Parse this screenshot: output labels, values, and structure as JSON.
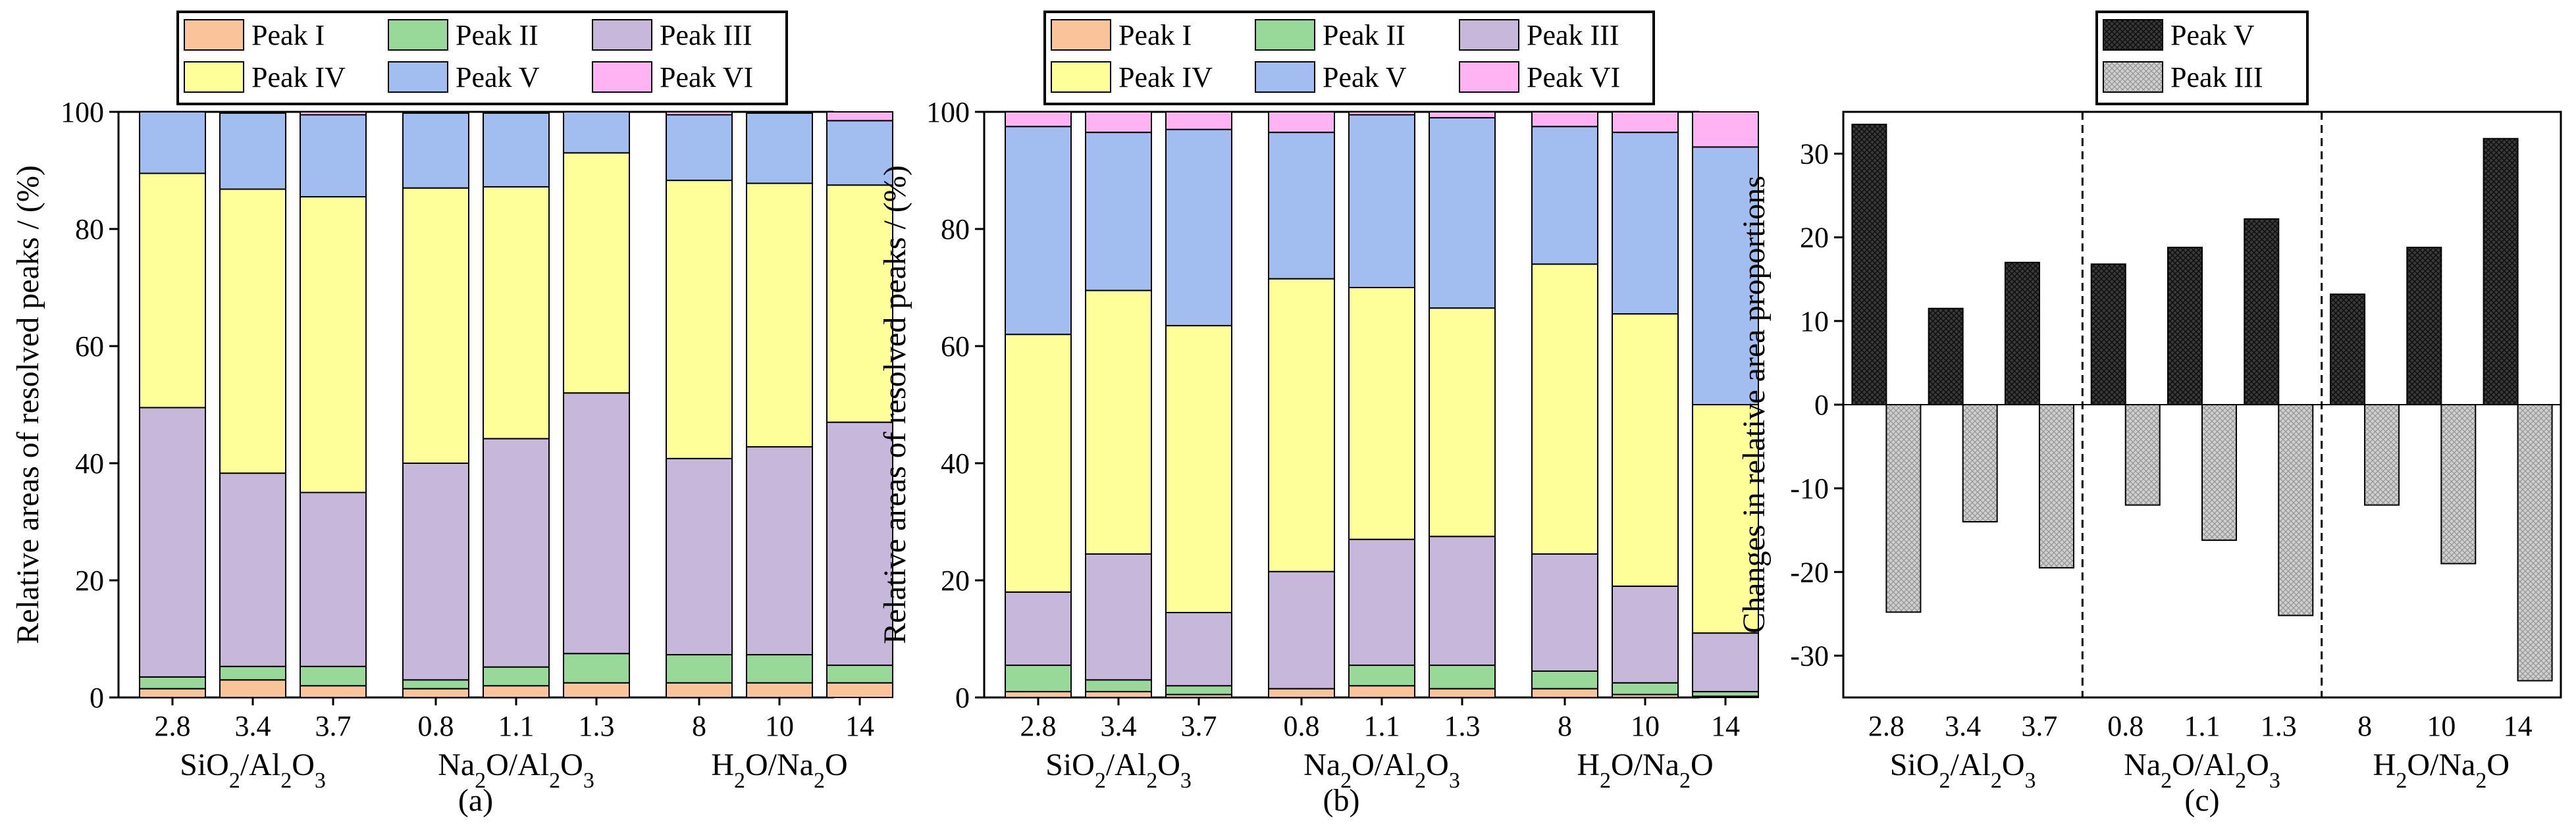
{
  "chart_data": [
    {
      "panel": "(a)",
      "type": "stacked-bar",
      "ylabel": "Relative areas of resolved peaks / (%)",
      "ylim": [
        0,
        100
      ],
      "yticks": [
        0,
        20,
        40,
        60,
        80,
        100
      ],
      "groups": [
        {
          "label": "SiO2/Al2O3",
          "label_main": "SiO",
          "label_parts": [
            {
              "t": "SiO"
            },
            {
              "t": "2",
              "sub": true
            },
            {
              "t": "/Al"
            },
            {
              "t": "2",
              "sub": true
            },
            {
              "t": "O"
            },
            {
              "t": "3",
              "sub": true
            }
          ],
          "categories": [
            "2.8",
            "3.4",
            "3.7"
          ]
        },
        {
          "label": "Na2O/Al2O3",
          "label_parts": [
            {
              "t": "Na"
            },
            {
              "t": "2",
              "sub": true
            },
            {
              "t": "O/Al"
            },
            {
              "t": "2",
              "sub": true
            },
            {
              "t": "O"
            },
            {
              "t": "3",
              "sub": true
            }
          ],
          "categories": [
            "0.8",
            "1.1",
            "1.3"
          ]
        },
        {
          "label": "H2O/Na2O",
          "label_parts": [
            {
              "t": "H"
            },
            {
              "t": "2",
              "sub": true
            },
            {
              "t": "O/Na"
            },
            {
              "t": "2",
              "sub": true
            },
            {
              "t": "O"
            }
          ],
          "categories": [
            "8",
            "10",
            "14"
          ]
        }
      ],
      "series": [
        {
          "name": "Peak I",
          "color": "#F9C499",
          "values": [
            1.5,
            3.0,
            2.0,
            1.5,
            2.0,
            2.5,
            2.5,
            2.5,
            2.5
          ]
        },
        {
          "name": "Peak II",
          "color": "#98D99A",
          "values": [
            2.0,
            2.3,
            3.3,
            1.5,
            3.2,
            5.0,
            4.8,
            4.8,
            3.0
          ]
        },
        {
          "name": "Peak III",
          "color": "#C7B7DA",
          "values": [
            46.0,
            33.0,
            29.7,
            37.0,
            39.0,
            44.5,
            33.5,
            35.5,
            41.5
          ]
        },
        {
          "name": "Peak IV",
          "color": "#FFFF99",
          "values": [
            40.0,
            48.5,
            50.5,
            47.0,
            43.0,
            41.0,
            47.5,
            45.0,
            40.5
          ]
        },
        {
          "name": "Peak V",
          "color": "#A2BEF0",
          "values": [
            10.5,
            13.0,
            14.0,
            12.8,
            12.6,
            7.0,
            11.2,
            12.0,
            11.0
          ]
        },
        {
          "name": "Peak VI",
          "color": "#FFB3F3",
          "values": [
            0.0,
            0.2,
            0.5,
            0.2,
            0.2,
            0.0,
            0.5,
            0.2,
            1.5
          ]
        }
      ],
      "legend": [
        {
          "name": "Peak I",
          "color": "#F9C499"
        },
        {
          "name": "Peak II",
          "color": "#98D99A"
        },
        {
          "name": "Peak III",
          "color": "#C7B7DA"
        },
        {
          "name": "Peak IV",
          "color": "#FFFF99"
        },
        {
          "name": "Peak V",
          "color": "#A2BEF0"
        },
        {
          "name": "Peak VI",
          "color": "#FFB3F3"
        }
      ],
      "legend_placement": "top"
    },
    {
      "panel": "(b)",
      "type": "stacked-bar",
      "ylabel": "Relative areas of resolved peaks / (%)",
      "ylim": [
        0,
        100
      ],
      "yticks": [
        0,
        20,
        40,
        60,
        80,
        100
      ],
      "groups": [
        {
          "label": "SiO2/Al2O3",
          "label_parts": [
            {
              "t": "SiO"
            },
            {
              "t": "2",
              "sub": true
            },
            {
              "t": "/Al"
            },
            {
              "t": "2",
              "sub": true
            },
            {
              "t": "O"
            },
            {
              "t": "3",
              "sub": true
            }
          ],
          "categories": [
            "2.8",
            "3.4",
            "3.7"
          ]
        },
        {
          "label": "Na2O/Al2O3",
          "label_parts": [
            {
              "t": "Na"
            },
            {
              "t": "2",
              "sub": true
            },
            {
              "t": "O/Al"
            },
            {
              "t": "2",
              "sub": true
            },
            {
              "t": "O"
            },
            {
              "t": "3",
              "sub": true
            }
          ],
          "categories": [
            "0.8",
            "1.1",
            "1.3"
          ]
        },
        {
          "label": "H2O/Na2O",
          "label_parts": [
            {
              "t": "H"
            },
            {
              "t": "2",
              "sub": true
            },
            {
              "t": "O/Na"
            },
            {
              "t": "2",
              "sub": true
            },
            {
              "t": "O"
            }
          ],
          "categories": [
            "8",
            "10",
            "14"
          ]
        }
      ],
      "series": [
        {
          "name": "Peak I",
          "color": "#F9C499",
          "values": [
            1.0,
            1.0,
            0.5,
            1.5,
            2.0,
            1.5,
            1.5,
            0.5,
            0.2
          ]
        },
        {
          "name": "Peak II",
          "color": "#98D99A",
          "values": [
            4.5,
            2.0,
            1.5,
            0.0,
            3.5,
            4.0,
            3.0,
            2.0,
            0.8
          ]
        },
        {
          "name": "Peak III",
          "color": "#C7B7DA",
          "values": [
            12.5,
            21.5,
            12.5,
            20.0,
            21.5,
            22.0,
            20.0,
            16.5,
            10.0
          ]
        },
        {
          "name": "Peak IV",
          "color": "#FFFF99",
          "values": [
            44.0,
            45.0,
            49.0,
            50.0,
            43.0,
            39.0,
            49.5,
            46.5,
            39.0
          ]
        },
        {
          "name": "Peak V",
          "color": "#A2BEF0",
          "values": [
            35.5,
            27.0,
            33.5,
            25.0,
            29.5,
            32.5,
            23.5,
            31.0,
            44.0
          ]
        },
        {
          "name": "Peak VI",
          "color": "#FFB3F3",
          "values": [
            2.5,
            3.5,
            3.0,
            3.5,
            0.5,
            1.0,
            2.5,
            3.5,
            6.0
          ]
        }
      ],
      "legend": [
        {
          "name": "Peak I",
          "color": "#F9C499"
        },
        {
          "name": "Peak II",
          "color": "#98D99A"
        },
        {
          "name": "Peak III",
          "color": "#C7B7DA"
        },
        {
          "name": "Peak IV",
          "color": "#FFFF99"
        },
        {
          "name": "Peak V",
          "color": "#A2BEF0"
        },
        {
          "name": "Peak VI",
          "color": "#FFB3F3"
        }
      ],
      "legend_placement": "top"
    },
    {
      "panel": "(c)",
      "type": "bar",
      "ylabel": "Changes in relative area proportions",
      "ylim": [
        -35,
        35
      ],
      "yticks": [
        -30,
        -20,
        -10,
        0,
        10,
        20,
        30
      ],
      "groups": [
        {
          "label": "SiO2/Al2O3",
          "label_parts": [
            {
              "t": "SiO"
            },
            {
              "t": "2",
              "sub": true
            },
            {
              "t": "/Al"
            },
            {
              "t": "2",
              "sub": true
            },
            {
              "t": "O"
            },
            {
              "t": "3",
              "sub": true
            }
          ],
          "categories": [
            "2.8",
            "3.4",
            "3.7"
          ]
        },
        {
          "label": "Na2O/Al2O3",
          "label_parts": [
            {
              "t": "Na"
            },
            {
              "t": "2",
              "sub": true
            },
            {
              "t": "O/Al"
            },
            {
              "t": "2",
              "sub": true
            },
            {
              "t": "O"
            },
            {
              "t": "3",
              "sub": true
            }
          ],
          "categories": [
            "0.8",
            "1.1",
            "1.3"
          ]
        },
        {
          "label": "H2O/Na2O",
          "label_parts": [
            {
              "t": "H"
            },
            {
              "t": "2",
              "sub": true
            },
            {
              "t": "O/Na"
            },
            {
              "t": "2",
              "sub": true
            },
            {
              "t": "O"
            }
          ],
          "categories": [
            "8",
            "10",
            "14"
          ]
        }
      ],
      "series": [
        {
          "name": "Peak V",
          "color": "#3a3a3a",
          "values": [
            33.5,
            11.5,
            17.0,
            16.8,
            18.8,
            22.2,
            13.2,
            18.8,
            31.8
          ]
        },
        {
          "name": "Peak III",
          "color": "#c8c8c8",
          "values": [
            -24.8,
            -14.0,
            -19.5,
            -12.0,
            -16.2,
            -25.2,
            -12.0,
            -19.0,
            -33.0
          ]
        }
      ],
      "legend": [
        {
          "name": "Peak V",
          "color": "#3a3a3a"
        },
        {
          "name": "Peak III",
          "color": "#c8c8c8"
        }
      ],
      "legend_placement": "top"
    }
  ]
}
